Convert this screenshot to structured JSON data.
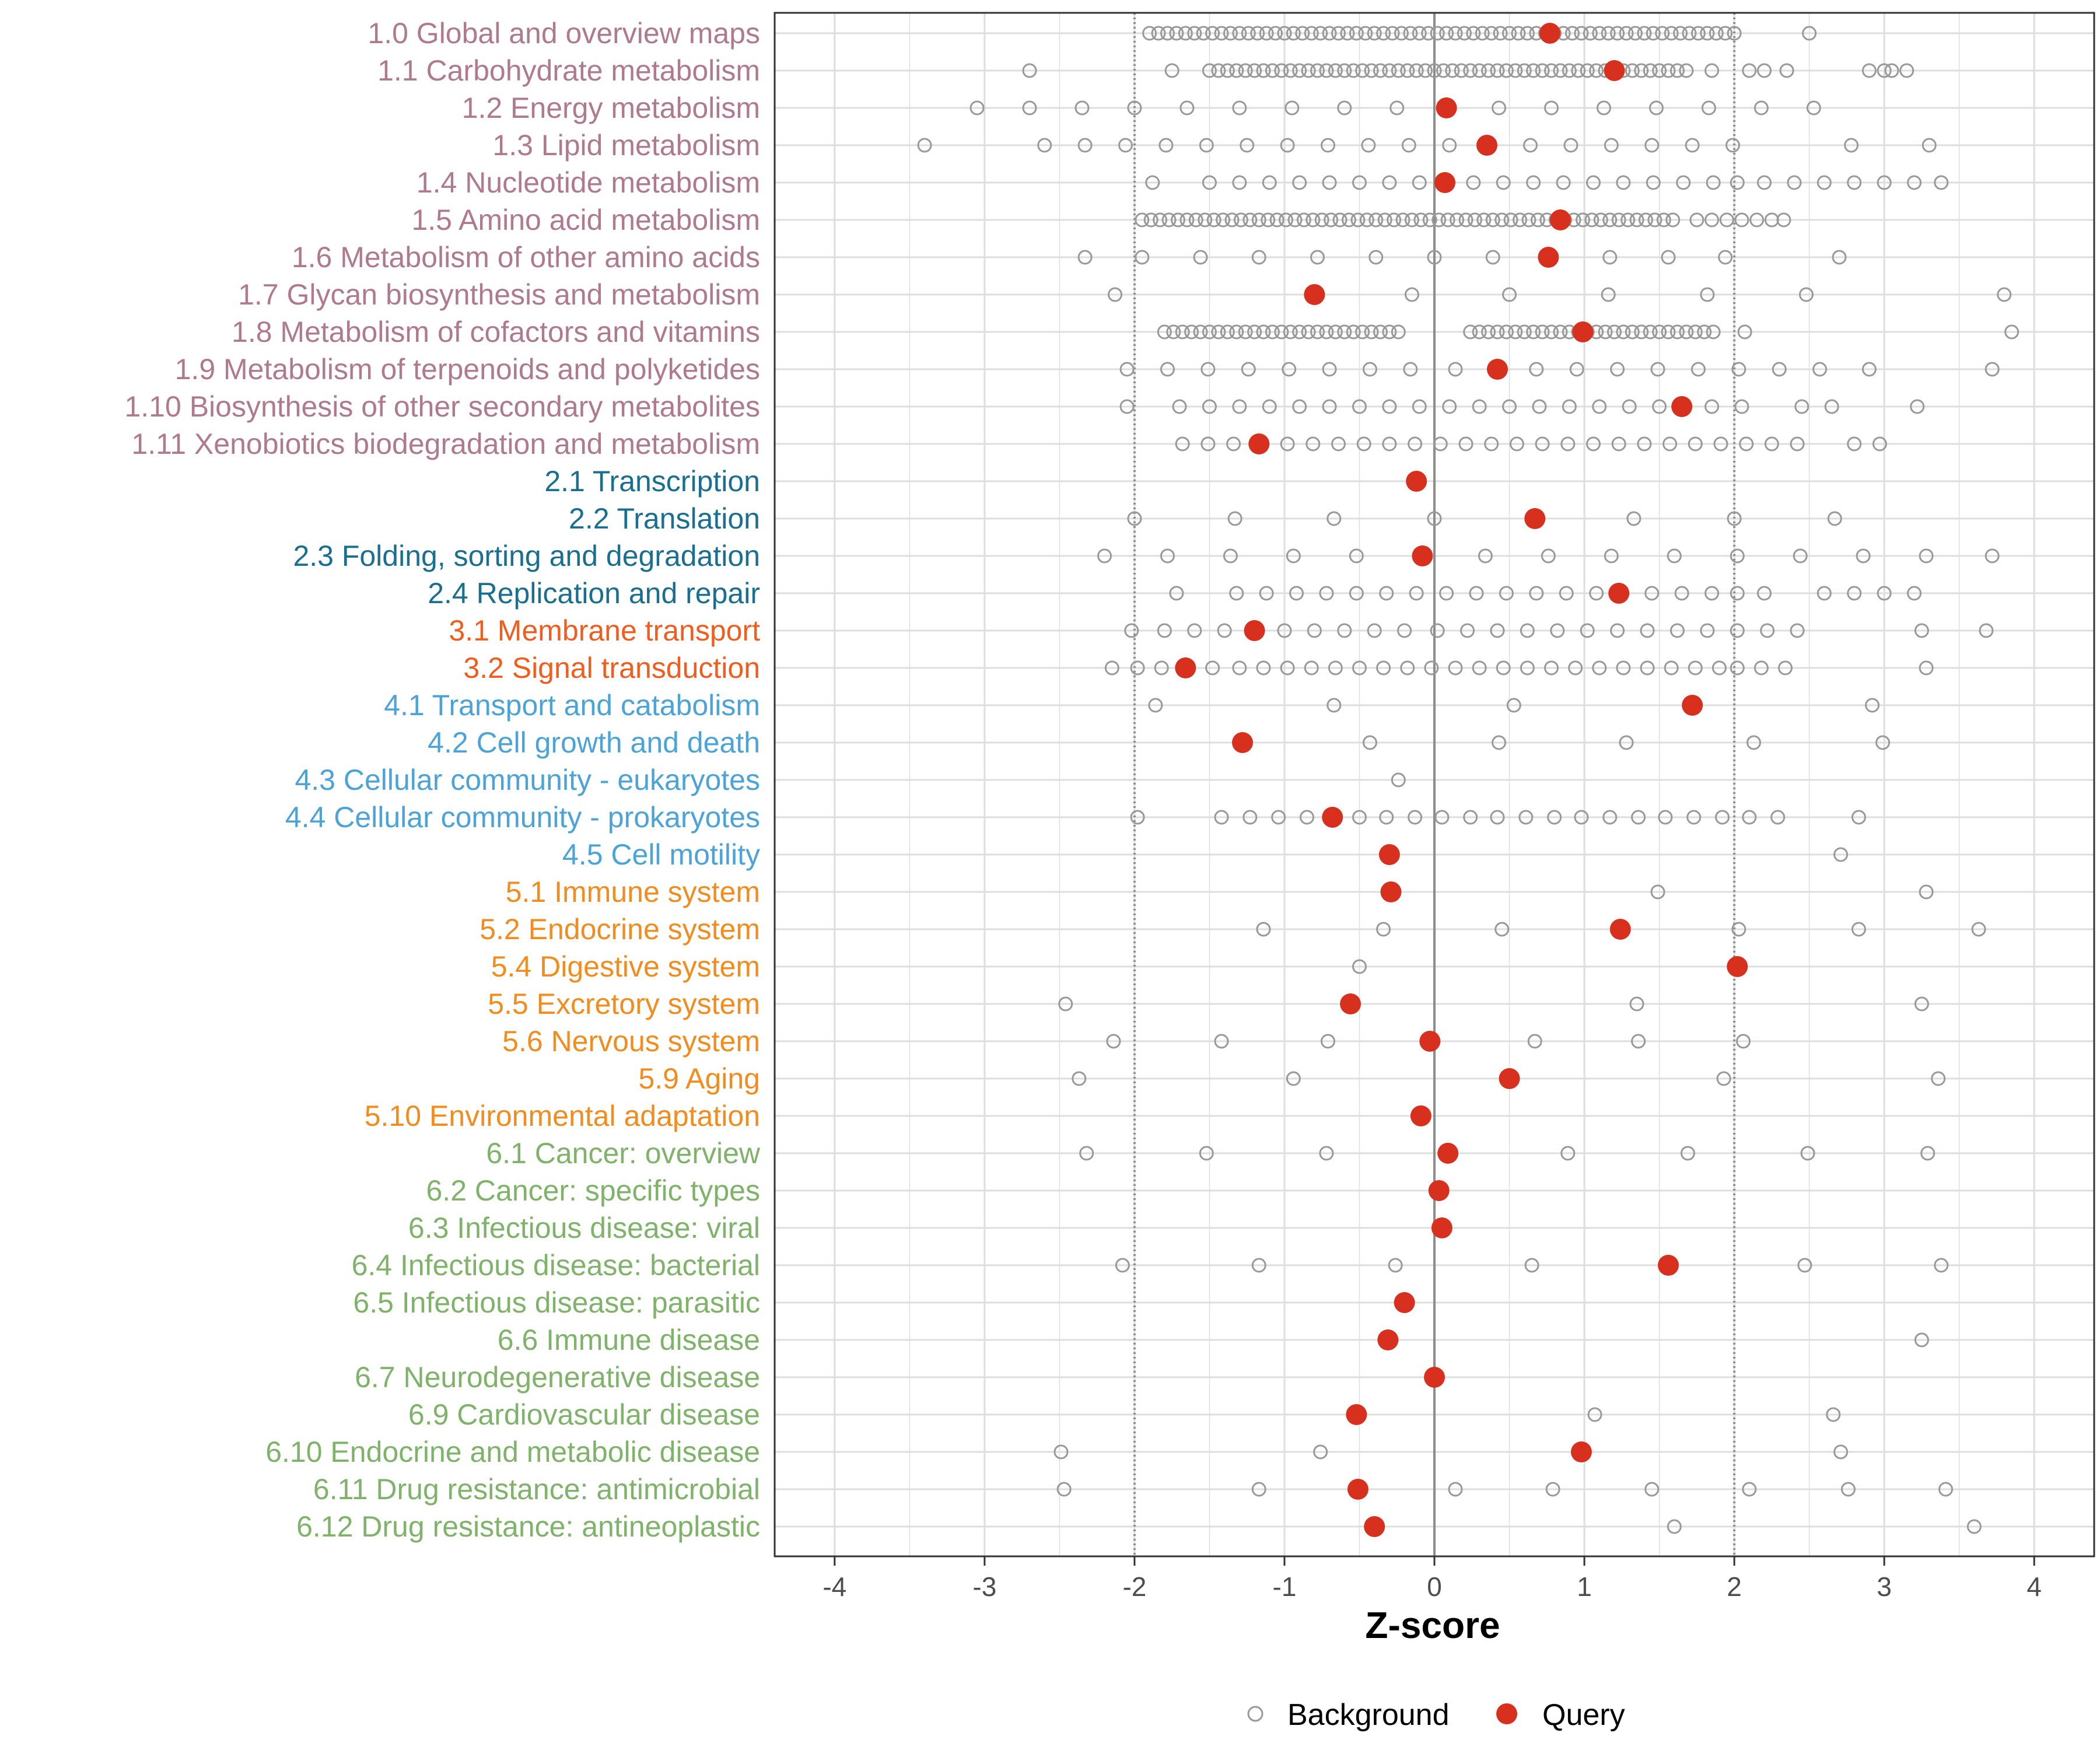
{
  "colors": {
    "background_point": "#999999",
    "query_point": "#d7301f",
    "group1": "#b07a8e",
    "group2": "#1a6f91",
    "group3": "#ef5d1f",
    "group4": "#4ba3d8",
    "group5": "#f18d1f",
    "group6": "#7fb36a"
  },
  "chart_data": {
    "type": "scatter",
    "xlabel": "Z-score",
    "xlim": [
      -4.4,
      4.4
    ],
    "xticks": [
      -4,
      -3,
      -2,
      -1,
      0,
      1,
      2,
      3,
      4
    ],
    "xtick_labels": [
      "-4",
      "-3",
      "-2",
      "-1",
      "0",
      "1",
      "2",
      "3",
      "4"
    ],
    "reference_lines": [
      -2,
      0,
      2
    ],
    "legend": {
      "position": "bottom",
      "entries": [
        "Background",
        "Query"
      ]
    },
    "categories": [
      {
        "label": "1.0 Global and overview maps",
        "group": 1,
        "query": 0.77,
        "bg_mode": "dense",
        "bg_range": [
          -1.9,
          2.0
        ],
        "bg_extra": [
          2.5
        ]
      },
      {
        "label": "1.1 Carbohydrate metabolism",
        "group": 1,
        "query": 1.2,
        "bg_mode": "dense",
        "bg_range": [
          -1.5,
          1.7
        ],
        "bg_extra": [
          -2.7,
          -1.75,
          1.85,
          2.1,
          2.2,
          2.35,
          2.9,
          3.0,
          3.05,
          3.15
        ]
      },
      {
        "label": "1.2 Energy metabolism",
        "group": 1,
        "query": 0.08,
        "bg_mode": "list",
        "bg": [
          -3.05,
          -2.7,
          -2.35,
          -2.0,
          -1.65,
          -1.3,
          -0.95,
          -0.6,
          -0.25,
          0.43,
          0.78,
          1.13,
          1.48,
          1.83,
          2.18,
          2.53
        ]
      },
      {
        "label": "1.3 Lipid metabolism",
        "group": 1,
        "query": 0.35,
        "bg_mode": "list",
        "bg": [
          -3.4,
          -2.6,
          -2.33,
          -2.06,
          -1.79,
          -1.52,
          -1.25,
          -0.98,
          -0.71,
          -0.44,
          -0.17,
          0.1,
          0.64,
          0.91,
          1.18,
          1.45,
          1.72,
          1.99,
          2.78,
          3.3
        ]
      },
      {
        "label": "1.4 Nucleotide metabolism",
        "group": 1,
        "query": 0.07,
        "bg_mode": "list",
        "bg": [
          -1.88,
          -1.5,
          -1.3,
          -1.1,
          -0.9,
          -0.7,
          -0.5,
          -0.3,
          -0.1,
          0.26,
          0.46,
          0.66,
          0.86,
          1.06,
          1.26,
          1.46,
          1.66,
          1.86,
          2.02,
          2.2,
          2.4,
          2.6,
          2.8,
          3.0,
          3.2,
          3.38
        ]
      },
      {
        "label": "1.5 Amino acid metabolism",
        "group": 1,
        "query": 0.84,
        "bg_mode": "dense",
        "bg_range": [
          -1.95,
          1.6
        ],
        "bg_extra": [
          1.75,
          1.85,
          1.95,
          2.05,
          2.15,
          2.25,
          2.33
        ]
      },
      {
        "label": "1.6 Metabolism of other amino acids",
        "group": 1,
        "query": 0.76,
        "bg_mode": "list",
        "bg": [
          -2.33,
          -1.95,
          -1.56,
          -1.17,
          -0.78,
          -0.39,
          0.0,
          0.39,
          1.17,
          1.56,
          1.94,
          2.7
        ]
      },
      {
        "label": "1.7 Glycan biosynthesis and metabolism",
        "group": 1,
        "query": -0.8,
        "bg_mode": "list",
        "bg": [
          -2.13,
          -0.15,
          0.5,
          1.16,
          1.82,
          2.48,
          3.8
        ]
      },
      {
        "label": "1.8 Metabolism of cofactors and vitamins",
        "group": 1,
        "query": 0.99,
        "bg_mode": "dense",
        "bg_range": [
          -1.8,
          1.9
        ],
        "bg_gap": [
          -0.2,
          0.2
        ],
        "bg_extra": [
          2.07,
          3.85
        ]
      },
      {
        "label": "1.9 Metabolism of terpenoids and polyketides",
        "group": 1,
        "query": 0.42,
        "bg_mode": "list",
        "bg": [
          -2.05,
          -1.78,
          -1.51,
          -1.24,
          -0.97,
          -0.7,
          -0.43,
          -0.16,
          0.14,
          0.68,
          0.95,
          1.22,
          1.49,
          1.76,
          2.03,
          2.3,
          2.57,
          2.9,
          3.72
        ]
      },
      {
        "label": "1.10 Biosynthesis of other secondary metabolites",
        "group": 1,
        "query": 1.65,
        "bg_mode": "list",
        "bg": [
          -2.05,
          -1.7,
          -1.5,
          -1.3,
          -1.1,
          -0.9,
          -0.7,
          -0.5,
          -0.3,
          -0.1,
          0.1,
          0.3,
          0.5,
          0.7,
          0.9,
          1.1,
          1.3,
          1.5,
          1.85,
          2.05,
          2.45,
          2.65,
          3.22
        ]
      },
      {
        "label": "1.11 Xenobiotics biodegradation and metabolism",
        "group": 1,
        "query": -1.17,
        "bg_mode": "list",
        "bg": [
          -1.68,
          -1.51,
          -1.34,
          -0.98,
          -0.81,
          -0.64,
          -0.47,
          -0.3,
          -0.13,
          0.04,
          0.21,
          0.38,
          0.55,
          0.72,
          0.89,
          1.06,
          1.23,
          1.4,
          1.57,
          1.74,
          1.91,
          2.08,
          2.25,
          2.42,
          2.8,
          2.97
        ]
      },
      {
        "label": "2.1 Transcription",
        "group": 2,
        "query": -0.12,
        "bg_mode": "list",
        "bg": []
      },
      {
        "label": "2.2 Translation",
        "group": 2,
        "query": 0.67,
        "bg_mode": "list",
        "bg": [
          -2.0,
          -1.33,
          -0.67,
          0.0,
          1.33,
          2.0,
          2.67
        ]
      },
      {
        "label": "2.3 Folding, sorting and degradation",
        "group": 2,
        "query": -0.08,
        "bg_mode": "list",
        "bg": [
          -2.2,
          -1.78,
          -1.36,
          -0.94,
          -0.52,
          0.34,
          0.76,
          1.18,
          1.6,
          2.02,
          2.44,
          2.86,
          3.28,
          3.72
        ]
      },
      {
        "label": "2.4 Replication and repair",
        "group": 2,
        "query": 1.23,
        "bg_mode": "list",
        "bg": [
          -1.72,
          -1.32,
          -1.12,
          -0.92,
          -0.72,
          -0.52,
          -0.32,
          -0.12,
          0.08,
          0.28,
          0.48,
          0.68,
          0.88,
          1.08,
          1.45,
          1.65,
          1.85,
          2.02,
          2.2,
          2.6,
          2.8,
          3.0,
          3.2
        ]
      },
      {
        "label": "3.1 Membrane transport",
        "group": 3,
        "query": -1.2,
        "bg_mode": "list",
        "bg": [
          -2.02,
          -1.8,
          -1.6,
          -1.4,
          -1.0,
          -0.8,
          -0.6,
          -0.4,
          -0.2,
          0.02,
          0.22,
          0.42,
          0.62,
          0.82,
          1.02,
          1.22,
          1.42,
          1.62,
          1.82,
          2.02,
          2.22,
          2.42,
          3.25,
          3.68
        ]
      },
      {
        "label": "3.2 Signal transduction",
        "group": 3,
        "query": -1.66,
        "bg_mode": "list",
        "bg": [
          -2.15,
          -1.98,
          -1.82,
          -1.48,
          -1.3,
          -1.14,
          -0.98,
          -0.82,
          -0.66,
          -0.5,
          -0.34,
          -0.18,
          -0.02,
          0.14,
          0.3,
          0.46,
          0.62,
          0.78,
          0.94,
          1.1,
          1.26,
          1.42,
          1.58,
          1.74,
          1.9,
          2.02,
          2.18,
          2.34,
          3.28
        ]
      },
      {
        "label": "4.1 Transport and catabolism",
        "group": 4,
        "query": 1.72,
        "bg_mode": "list",
        "bg": [
          -1.86,
          -0.67,
          0.53,
          2.92
        ]
      },
      {
        "label": "4.2 Cell growth and death",
        "group": 4,
        "query": -1.28,
        "bg_mode": "list",
        "bg": [
          -0.43,
          0.43,
          1.28,
          2.13,
          2.99
        ]
      },
      {
        "label": "4.3 Cellular community - eukaryotes",
        "group": 4,
        "query": null,
        "bg_mode": "list",
        "bg": [
          -0.24
        ]
      },
      {
        "label": "4.4 Cellular community - prokaryotes",
        "group": 4,
        "query": -0.68,
        "bg_mode": "list",
        "bg": [
          -1.98,
          -1.42,
          -1.23,
          -1.04,
          -0.85,
          -0.5,
          -0.32,
          -0.13,
          0.05,
          0.24,
          0.42,
          0.61,
          0.8,
          0.98,
          1.17,
          1.36,
          1.54,
          1.73,
          1.92,
          2.1,
          2.29,
          2.83
        ]
      },
      {
        "label": "4.5 Cell motility",
        "group": 4,
        "query": -0.3,
        "bg_mode": "list",
        "bg": [
          2.71
        ]
      },
      {
        "label": "5.1 Immune system",
        "group": 5,
        "query": -0.29,
        "bg_mode": "list",
        "bg": [
          1.49,
          3.28
        ]
      },
      {
        "label": "5.2 Endocrine system",
        "group": 5,
        "query": 1.24,
        "bg_mode": "list",
        "bg": [
          -1.14,
          -0.34,
          0.45,
          2.03,
          2.83,
          3.63
        ]
      },
      {
        "label": "5.4 Digestive system",
        "group": 5,
        "query": 2.02,
        "bg_mode": "list",
        "bg": [
          -0.5,
          2.02
        ]
      },
      {
        "label": "5.5 Excretory system",
        "group": 5,
        "query": -0.56,
        "bg_mode": "list",
        "bg": [
          -2.46,
          1.35,
          3.25
        ]
      },
      {
        "label": "5.6 Nervous system",
        "group": 5,
        "query": -0.03,
        "bg_mode": "list",
        "bg": [
          -2.14,
          -1.42,
          -0.71,
          0.67,
          1.36,
          2.06
        ]
      },
      {
        "label": "5.9 Aging",
        "group": 5,
        "query": 0.5,
        "bg_mode": "list",
        "bg": [
          -2.37,
          -0.94,
          1.93,
          3.36
        ]
      },
      {
        "label": "5.10 Environmental adaptation",
        "group": 5,
        "query": -0.09,
        "bg_mode": "list",
        "bg": []
      },
      {
        "label": "6.1 Cancer: overview",
        "group": 6,
        "query": 0.09,
        "bg_mode": "list",
        "bg": [
          -2.32,
          -1.52,
          -0.72,
          0.89,
          1.69,
          2.49,
          3.29
        ]
      },
      {
        "label": "6.2 Cancer: specific types",
        "group": 6,
        "query": 0.03,
        "bg_mode": "list",
        "bg": []
      },
      {
        "label": "6.3 Infectious disease: viral",
        "group": 6,
        "query": 0.05,
        "bg_mode": "list",
        "bg": []
      },
      {
        "label": "6.4 Infectious disease: bacterial",
        "group": 6,
        "query": 1.56,
        "bg_mode": "list",
        "bg": [
          -2.08,
          -1.17,
          -0.26,
          0.65,
          2.47,
          3.38
        ]
      },
      {
        "label": "6.5 Infectious disease: parasitic",
        "group": 6,
        "query": -0.2,
        "bg_mode": "list",
        "bg": []
      },
      {
        "label": "6.6 Immune disease",
        "group": 6,
        "query": -0.31,
        "bg_mode": "list",
        "bg": [
          3.25
        ]
      },
      {
        "label": "6.7 Neurodegenerative disease",
        "group": 6,
        "query": 0.0,
        "bg_mode": "list",
        "bg": []
      },
      {
        "label": "6.9 Cardiovascular disease",
        "group": 6,
        "query": -0.52,
        "bg_mode": "list",
        "bg": [
          1.07,
          2.66
        ]
      },
      {
        "label": "6.10 Endocrine and metabolic disease",
        "group": 6,
        "query": 0.98,
        "bg_mode": "list",
        "bg": [
          -2.49,
          -0.76,
          2.71
        ]
      },
      {
        "label": "6.11 Drug resistance: antimicrobial",
        "group": 6,
        "query": -0.51,
        "bg_mode": "list",
        "bg": [
          -2.47,
          -1.17,
          0.14,
          0.79,
          1.45,
          2.1,
          2.76,
          3.41
        ]
      },
      {
        "label": "6.12 Drug resistance: antineoplastic",
        "group": 6,
        "query": -0.4,
        "bg_mode": "list",
        "bg": [
          1.6,
          3.6
        ]
      }
    ]
  }
}
